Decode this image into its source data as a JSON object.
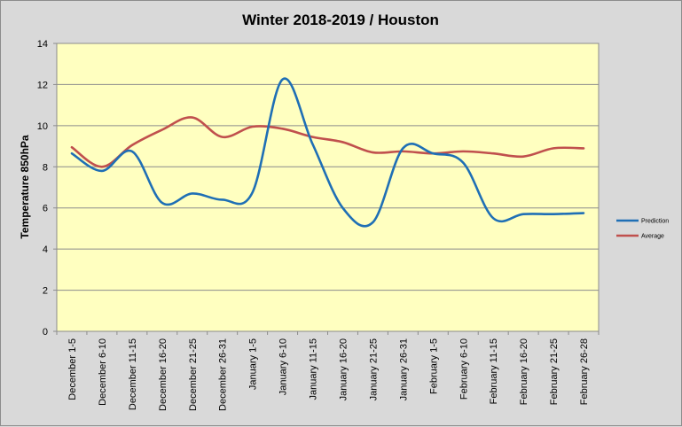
{
  "chart_data": {
    "type": "line",
    "title": "Winter 2018-2019 / Houston",
    "xlabel": "",
    "ylabel": "Temperature 850hPa",
    "ylim": [
      0,
      14
    ],
    "yticks": [
      0,
      2,
      4,
      6,
      8,
      10,
      12,
      14
    ],
    "grid": true,
    "legend_position": "right",
    "categories": [
      "December 1-5",
      "December 6-10",
      "December 11-15",
      "December 16-20",
      "December 21-25",
      "December 26-31",
      "January 1-5",
      "January 6-10",
      "January 11-15",
      "January 16-20",
      "January 21-25",
      "January 26-31",
      "February 1-5",
      "February 6-10",
      "February 11-15",
      "February 16-20",
      "February 21-25",
      "February 26-28"
    ],
    "series": [
      {
        "name": "Prediction",
        "color": "#1f6fb5",
        "values": [
          8.65,
          7.8,
          8.75,
          6.25,
          6.7,
          6.4,
          6.75,
          12.25,
          9.1,
          6.0,
          5.3,
          8.9,
          8.65,
          8.2,
          5.5,
          5.7,
          5.7,
          5.75
        ]
      },
      {
        "name": "Average",
        "color": "#c0504d",
        "values": [
          8.95,
          8.0,
          9.05,
          9.8,
          10.4,
          9.45,
          9.95,
          9.85,
          9.45,
          9.2,
          8.7,
          8.75,
          8.65,
          8.75,
          8.65,
          8.5,
          8.9,
          8.9
        ]
      }
    ]
  }
}
